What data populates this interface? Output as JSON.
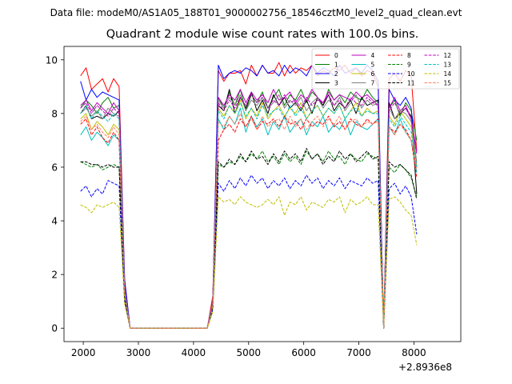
{
  "figure": {
    "suptitle": "Data file: modeM0/AS1A05_188T01_9000002756_18546cztM0_level2_quad_clean.evt",
    "offset_text": "+2.8936e8"
  },
  "chart_data": {
    "type": "line",
    "title": "Quadrant 2 module wise count rates with 100.0s bins.",
    "xlabel": "",
    "ylabel": "",
    "x_offset": 289360000,
    "xlim": [
      1650,
      8850
    ],
    "ylim": [
      -0.5,
      10.5
    ],
    "xticks": [
      2000,
      3000,
      4000,
      5000,
      6000,
      7000,
      8000
    ],
    "yticks": [
      0,
      2,
      4,
      6,
      8,
      10
    ],
    "grid": false,
    "legend": {
      "placement": "top-right",
      "ncol": 4
    },
    "x_start": 1950,
    "x_step": 100,
    "series": [
      {
        "name": "0",
        "color": "#ff0000",
        "dash": "solid",
        "values": [
          9.4,
          9.7,
          8.9,
          9.1,
          9.3,
          8.8,
          9.3,
          9.0,
          1.8,
          0,
          0,
          0,
          0,
          0,
          0,
          0,
          0,
          0,
          0,
          0,
          0,
          0,
          0,
          0,
          1.2,
          9.6,
          9.2,
          9.5,
          9.5,
          9.6,
          9.1,
          9.8,
          9.4,
          9.8,
          9.5,
          9.5,
          9.9,
          9.4,
          9.8,
          9.5,
          9.7,
          9.6,
          9.8,
          9.4,
          9.6,
          9.5,
          9.7,
          9.6,
          9.8,
          9.5,
          9.7,
          9.4,
          9.6,
          9.5,
          9.0,
          0,
          9.3,
          9.5,
          9.2,
          9.6,
          9.4,
          6.6
        ]
      },
      {
        "name": "1",
        "color": "#008000",
        "dash": "solid",
        "values": [
          8.2,
          8.5,
          8.3,
          8.0,
          8.4,
          8.6,
          8.2,
          8.3,
          1.5,
          0,
          0,
          0,
          0,
          0,
          0,
          0,
          0,
          0,
          0,
          0,
          0,
          0,
          0,
          0,
          1.0,
          8.6,
          8.2,
          8.8,
          8.3,
          8.9,
          8.1,
          8.7,
          8.4,
          8.8,
          8.2,
          8.6,
          8.9,
          8.3,
          8.7,
          8.5,
          8.9,
          8.4,
          8.8,
          8.6,
          8.3,
          8.9,
          8.5,
          8.7,
          8.4,
          8.8,
          8.6,
          8.5,
          8.9,
          8.6,
          8.4,
          0,
          8.2,
          8.5,
          7.9,
          8.4,
          8.1,
          7.0
        ]
      },
      {
        "name": "2",
        "color": "#0000ff",
        "dash": "solid",
        "values": [
          9.2,
          8.5,
          8.9,
          8.6,
          8.8,
          8.7,
          8.6,
          8.5,
          1.8,
          0,
          0,
          0,
          0,
          0,
          0,
          0,
          0,
          0,
          0,
          0,
          0,
          0,
          0,
          0,
          1.0,
          9.8,
          9.3,
          9.5,
          9.6,
          9.5,
          9.7,
          9.6,
          9.4,
          9.8,
          9.5,
          9.6,
          9.4,
          9.8,
          9.5,
          9.7,
          9.6,
          9.4,
          9.8,
          9.5,
          9.7,
          9.6,
          9.4,
          9.8,
          9.5,
          9.6,
          9.7,
          9.5,
          9.8,
          9.6,
          9.2,
          0,
          8.9,
          8.5,
          8.3,
          8.6,
          8.2,
          6.0
        ]
      },
      {
        "name": "3",
        "color": "#000000",
        "dash": "solid",
        "values": [
          8.0,
          8.3,
          7.8,
          7.9,
          7.8,
          8.0,
          7.9,
          8.1,
          1.4,
          0,
          0,
          0,
          0,
          0,
          0,
          0,
          0,
          0,
          0,
          0,
          0,
          0,
          0,
          0,
          1.0,
          8.3,
          8.1,
          8.9,
          8.0,
          8.6,
          8.2,
          8.8,
          8.1,
          8.5,
          8.0,
          8.7,
          8.3,
          8.6,
          8.2,
          8.4,
          8.1,
          8.5,
          8.0,
          8.6,
          8.3,
          8.7,
          8.1,
          8.4,
          8.2,
          8.5,
          8.0,
          8.6,
          8.3,
          8.4,
          8.5,
          0,
          8.4,
          7.8,
          8.0,
          8.2,
          7.9,
          5.0
        ]
      },
      {
        "name": "4",
        "color": "#bf00bf",
        "dash": "solid",
        "values": [
          8.3,
          8.5,
          8.1,
          8.4,
          8.2,
          8.0,
          8.4,
          8.1,
          1.5,
          0,
          0,
          0,
          0,
          0,
          0,
          0,
          0,
          0,
          0,
          0,
          0,
          0,
          0,
          0,
          1.0,
          8.6,
          8.3,
          8.7,
          8.5,
          8.9,
          8.4,
          8.8,
          8.5,
          8.7,
          8.4,
          8.9,
          8.5,
          8.6,
          8.8,
          8.4,
          8.7,
          8.5,
          8.9,
          8.6,
          8.4,
          8.8,
          8.5,
          8.7,
          8.6,
          8.5,
          8.8,
          8.6,
          8.7,
          8.5,
          8.3,
          0,
          8.2,
          8.6,
          8.1,
          8.3,
          7.8,
          6.6
        ]
      },
      {
        "name": "5",
        "color": "#00bfbf",
        "dash": "solid",
        "values": [
          7.2,
          7.5,
          7.0,
          7.3,
          7.1,
          6.8,
          7.2,
          7.0,
          1.3,
          0,
          0,
          0,
          0,
          0,
          0,
          0,
          0,
          0,
          0,
          0,
          0,
          0,
          0,
          0,
          0.9,
          7.8,
          7.4,
          7.9,
          7.6,
          8.2,
          7.3,
          7.9,
          7.5,
          7.8,
          7.2,
          7.7,
          7.4,
          7.9,
          7.3,
          7.6,
          7.8,
          7.2,
          7.7,
          7.5,
          7.9,
          7.3,
          7.6,
          7.4,
          7.8,
          7.2,
          7.7,
          7.5,
          7.4,
          7.6,
          7.8,
          0,
          7.5,
          7.2,
          7.8,
          7.3,
          7.0,
          5.8
        ]
      },
      {
        "name": "6",
        "color": "#bfbf00",
        "dash": "solid",
        "values": [
          7.8,
          8.0,
          7.4,
          7.7,
          7.5,
          7.2,
          7.6,
          7.4,
          1.3,
          0,
          0,
          0,
          0,
          0,
          0,
          0,
          0,
          0,
          0,
          0,
          0,
          0,
          0,
          0,
          0.9,
          8.2,
          7.9,
          8.3,
          8.0,
          8.5,
          7.8,
          8.2,
          7.9,
          8.4,
          7.8,
          8.1,
          8.3,
          7.9,
          8.2,
          8.0,
          8.4,
          7.8,
          8.1,
          8.3,
          7.9,
          8.2,
          8.0,
          8.3,
          7.8,
          8.1,
          8.4,
          7.9,
          8.2,
          8.0,
          8.1,
          0,
          7.9,
          7.6,
          8.1,
          7.8,
          7.5,
          6.0
        ]
      },
      {
        "name": "7",
        "color": "#808080",
        "dash": "solid",
        "values": [
          8.0,
          8.2,
          7.9,
          8.1,
          7.8,
          8.2,
          8.0,
          7.9,
          1.4,
          0,
          0,
          0,
          0,
          0,
          0,
          0,
          0,
          0,
          0,
          0,
          0,
          0,
          0,
          0,
          1.0,
          8.5,
          8.2,
          8.6,
          8.3,
          8.7,
          8.1,
          8.5,
          8.3,
          8.6,
          8.2,
          8.4,
          8.7,
          8.2,
          8.5,
          8.3,
          8.6,
          8.1,
          8.4,
          8.6,
          8.2,
          8.5,
          8.3,
          8.6,
          8.1,
          8.4,
          8.7,
          8.2,
          8.5,
          8.3,
          8.4,
          0,
          8.2,
          7.8,
          8.1,
          8.0,
          7.7,
          6.2
        ]
      },
      {
        "name": "8",
        "color": "#ff0000",
        "dash": "dashed",
        "values": [
          7.6,
          7.8,
          7.2,
          7.5,
          7.1,
          6.9,
          7.3,
          7.0,
          1.3,
          0,
          0,
          0,
          0,
          0,
          0,
          0,
          0,
          0,
          0,
          0,
          0,
          0,
          0,
          0,
          0.9,
          7.0,
          7.4,
          7.6,
          7.3,
          7.8,
          7.5,
          7.9,
          7.4,
          7.7,
          7.6,
          7.8,
          7.5,
          7.9,
          7.6,
          7.7,
          7.4,
          7.8,
          7.5,
          7.7,
          7.6,
          7.9,
          7.5,
          7.7,
          7.4,
          7.8,
          7.6,
          7.5,
          7.8,
          7.6,
          7.8,
          0,
          7.5,
          7.3,
          7.6,
          7.4,
          7.0,
          5.6
        ]
      },
      {
        "name": "9",
        "color": "#008000",
        "dash": "dashed",
        "values": [
          6.2,
          6.1,
          6.0,
          6.1,
          5.9,
          6.0,
          6.1,
          6.0,
          1.1,
          0,
          0,
          0,
          0,
          0,
          0,
          0,
          0,
          0,
          0,
          0,
          0,
          0,
          0,
          0,
          0.8,
          6.1,
          6.0,
          6.2,
          6.1,
          6.4,
          6.2,
          6.5,
          6.3,
          6.6,
          6.2,
          6.4,
          6.1,
          6.5,
          6.2,
          6.4,
          6.1,
          6.6,
          6.3,
          6.5,
          6.2,
          6.6,
          6.3,
          6.4,
          6.1,
          6.5,
          6.3,
          6.2,
          6.5,
          6.4,
          6.3,
          0,
          6.0,
          5.8,
          6.1,
          5.9,
          5.6,
          4.9
        ]
      },
      {
        "name": "10",
        "color": "#0000ff",
        "dash": "dashed",
        "values": [
          5.1,
          5.3,
          4.9,
          5.2,
          5.0,
          5.5,
          5.4,
          5.3,
          1.0,
          0,
          0,
          0,
          0,
          0,
          0,
          0,
          0,
          0,
          0,
          0,
          0,
          0,
          0,
          0,
          0.7,
          5.4,
          5.1,
          5.5,
          5.2,
          5.6,
          5.3,
          5.7,
          5.4,
          5.6,
          5.2,
          5.5,
          5.3,
          5.6,
          5.2,
          5.5,
          5.3,
          5.7,
          5.4,
          5.6,
          5.2,
          5.5,
          5.3,
          5.6,
          5.2,
          5.5,
          5.4,
          5.3,
          5.6,
          5.4,
          5.5,
          0,
          5.2,
          5.4,
          5.0,
          5.3,
          4.9,
          3.5
        ]
      },
      {
        "name": "11",
        "color": "#000000",
        "dash": "dashed",
        "values": [
          6.2,
          6.2,
          6.1,
          6.1,
          6.0,
          6.1,
          6.0,
          6.0,
          1.1,
          0,
          0,
          0,
          0,
          0,
          0,
          0,
          0,
          0,
          0,
          0,
          0,
          0,
          0,
          0,
          0.8,
          6.2,
          6.0,
          6.3,
          6.1,
          6.5,
          6.2,
          6.6,
          6.3,
          6.4,
          6.1,
          6.5,
          6.2,
          6.6,
          6.3,
          6.5,
          6.2,
          6.7,
          6.3,
          6.5,
          6.1,
          6.4,
          6.2,
          6.6,
          6.3,
          6.5,
          6.2,
          6.4,
          6.6,
          6.3,
          6.4,
          0,
          6.2,
          6.0,
          6.1,
          5.9,
          5.7,
          4.8
        ]
      },
      {
        "name": "12",
        "color": "#bf00bf",
        "dash": "dashed",
        "values": [
          8.2,
          8.4,
          8.0,
          8.3,
          8.1,
          7.9,
          8.2,
          8.0,
          1.4,
          0,
          0,
          0,
          0,
          0,
          0,
          0,
          0,
          0,
          0,
          0,
          0,
          0,
          0,
          0,
          1.0,
          8.4,
          8.1,
          8.5,
          8.2,
          8.6,
          8.3,
          8.7,
          8.4,
          8.6,
          8.2,
          8.5,
          8.3,
          8.7,
          8.4,
          8.5,
          8.2,
          8.6,
          8.3,
          8.5,
          8.4,
          8.7,
          8.3,
          8.5,
          8.2,
          8.6,
          8.4,
          8.3,
          8.6,
          8.4,
          8.3,
          0,
          8.1,
          8.4,
          8.0,
          8.2,
          7.8,
          6.5
        ]
      },
      {
        "name": "13",
        "color": "#00bfbf",
        "dash": "dashed",
        "values": [
          8.0,
          8.3,
          7.8,
          8.1,
          7.9,
          7.7,
          8.0,
          7.8,
          1.4,
          0,
          0,
          0,
          0,
          0,
          0,
          0,
          0,
          0,
          0,
          0,
          0,
          0,
          0,
          0,
          0.9,
          8.1,
          7.8,
          8.3,
          8.0,
          8.4,
          7.9,
          8.2,
          7.8,
          8.3,
          7.9,
          8.1,
          8.2,
          7.8,
          8.3,
          7.9,
          8.2,
          7.8,
          8.1,
          8.3,
          7.9,
          8.2,
          8.0,
          8.3,
          7.8,
          8.1,
          8.2,
          7.9,
          8.1,
          8.0,
          8.0,
          0,
          7.8,
          7.5,
          7.9,
          7.6,
          7.3,
          6.0
        ]
      },
      {
        "name": "14",
        "color": "#bfbf00",
        "dash": "dashed",
        "values": [
          4.6,
          4.5,
          4.3,
          4.6,
          4.5,
          4.6,
          4.7,
          4.5,
          0.9,
          0,
          0,
          0,
          0,
          0,
          0,
          0,
          0,
          0,
          0,
          0,
          0,
          0,
          0,
          0,
          0.6,
          4.9,
          4.7,
          4.8,
          4.6,
          4.9,
          4.7,
          4.6,
          4.5,
          4.6,
          4.8,
          4.6,
          4.9,
          4.2,
          4.7,
          4.6,
          4.9,
          4.4,
          4.7,
          4.6,
          4.5,
          4.8,
          4.7,
          4.9,
          4.3,
          4.8,
          4.6,
          4.7,
          4.9,
          4.6,
          4.6,
          0,
          4.8,
          4.9,
          4.7,
          4.4,
          4.2,
          3.1
        ]
      },
      {
        "name": "15",
        "color": "#ff8060",
        "dash": "dashed",
        "values": [
          7.7,
          7.9,
          7.4,
          7.6,
          7.3,
          7.1,
          7.5,
          7.2,
          1.3,
          0,
          0,
          0,
          0,
          0,
          0,
          0,
          0,
          0,
          0,
          0,
          0,
          0,
          0,
          0,
          0.9,
          7.7,
          7.5,
          7.9,
          7.6,
          8.0,
          7.5,
          7.8,
          7.4,
          7.9,
          7.5,
          7.7,
          7.8,
          7.4,
          7.9,
          7.5,
          7.8,
          7.4,
          7.7,
          7.9,
          7.5,
          7.8,
          7.6,
          7.9,
          7.4,
          7.7,
          7.8,
          7.5,
          7.7,
          7.6,
          7.7,
          0,
          7.5,
          7.2,
          7.6,
          7.3,
          7.0,
          5.9
        ]
      }
    ]
  }
}
